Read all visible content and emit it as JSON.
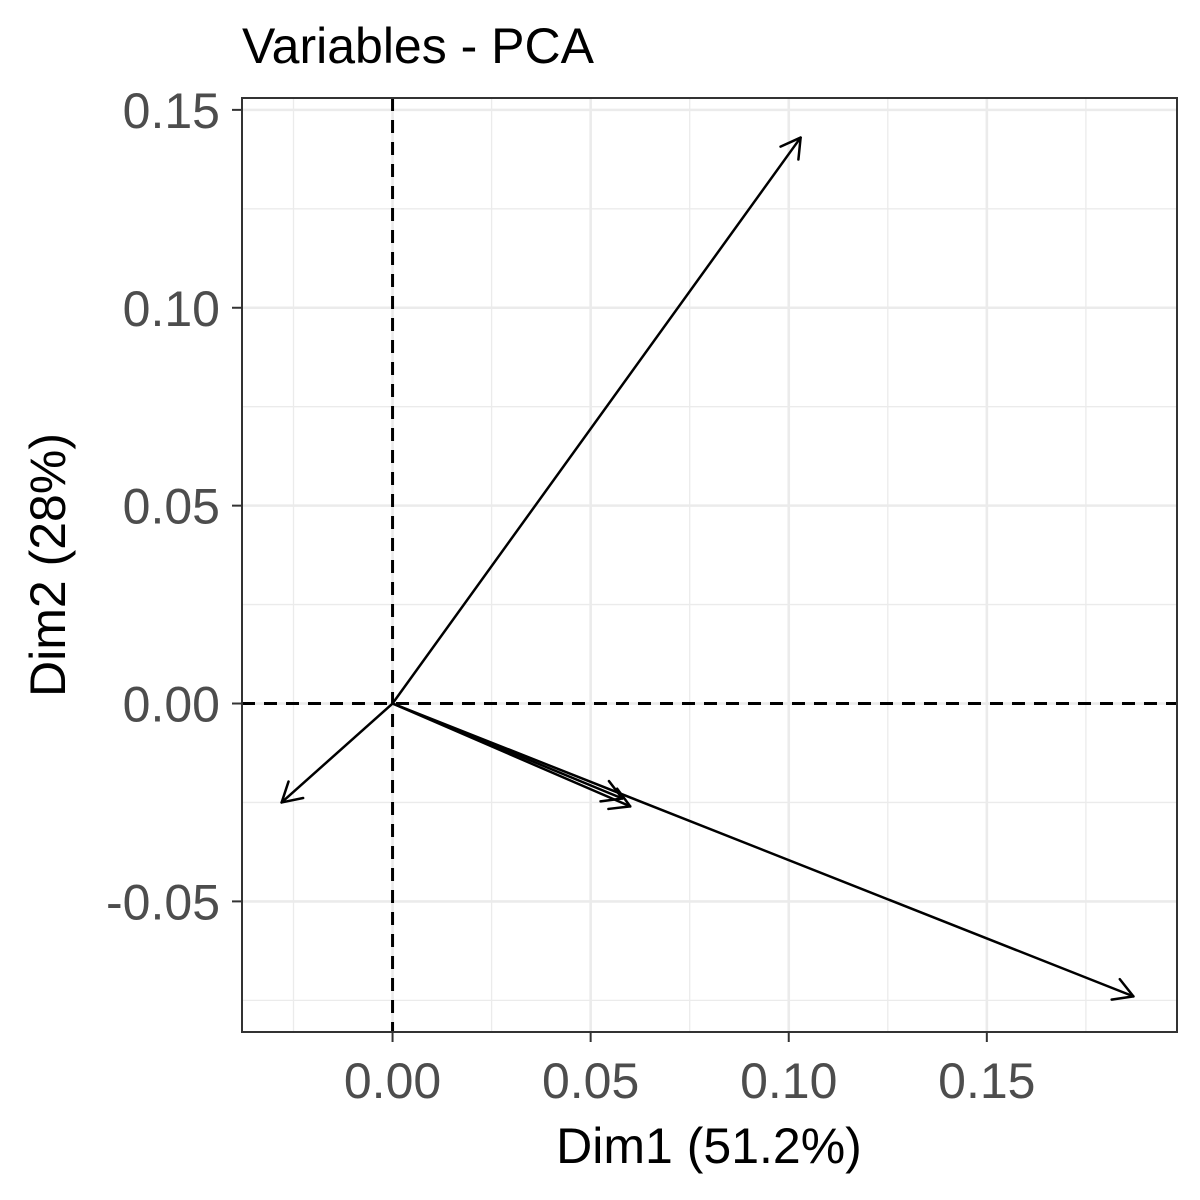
{
  "chart_data": {
    "type": "vector",
    "title": "Variables - PCA",
    "xlabel": "Dim1 (51.2%)",
    "ylabel": "Dim2 (28%)",
    "xlim": [
      -0.038,
      0.198
    ],
    "ylim": [
      -0.083,
      0.153
    ],
    "x_ticks": [
      0.0,
      0.05,
      0.1,
      0.15
    ],
    "x_tick_labels": [
      "0.00",
      "0.05",
      "0.10",
      "0.15"
    ],
    "y_ticks": [
      -0.05,
      0.0,
      0.05,
      0.1,
      0.15
    ],
    "y_tick_labels": [
      "-0.05",
      "0.00",
      "0.05",
      "0.10",
      "0.15"
    ],
    "grid": true,
    "reference_lines": {
      "x": 0,
      "y": 0,
      "style": "dashed"
    },
    "series": [
      {
        "x": 0.103,
        "y": 0.143
      },
      {
        "x": -0.028,
        "y": -0.025
      },
      {
        "x": 0.058,
        "y": -0.024
      },
      {
        "x": 0.06,
        "y": -0.026
      },
      {
        "x": 0.187,
        "y": -0.074
      }
    ],
    "colors": {
      "arrow": "#000000",
      "grid": "#ebebeb",
      "panel_border": "#333333",
      "tick_label": "#4d4d4d",
      "background": "#ffffff"
    }
  }
}
